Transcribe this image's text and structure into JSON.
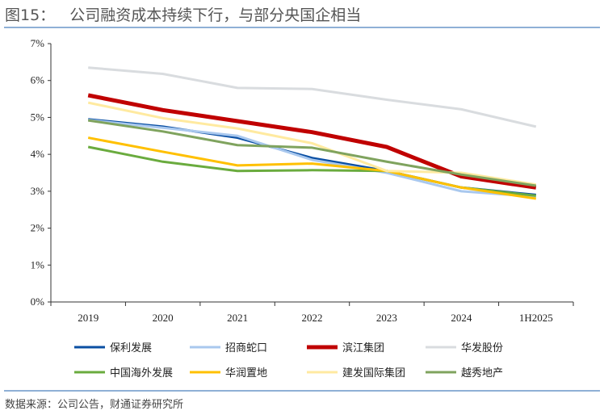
{
  "header": {
    "title": "图15：   公司融资成本持续下行，与部分央国企相当"
  },
  "footer": {
    "source": "数据来源：公司公告，财通证券研究所"
  },
  "chart_data": {
    "type": "line",
    "title": "公司融资成本持续下行，与部分央国企相当",
    "xlabel": "",
    "ylabel": "",
    "ylim": [
      0,
      7
    ],
    "yticks": [
      "0%",
      "1%",
      "2%",
      "3%",
      "4%",
      "5%",
      "6%",
      "7%"
    ],
    "categories": [
      "2019",
      "2020",
      "2021",
      "2022",
      "2023",
      "2024",
      "1H2025"
    ],
    "legend_position": "bottom",
    "series": [
      {
        "name": "保利发展",
        "color": "#0a4fa3",
        "width": 3,
        "values": [
          4.95,
          4.75,
          4.45,
          3.9,
          3.55,
          3.1,
          2.9
        ]
      },
      {
        "name": "招商蛇口",
        "color": "#a9c8ee",
        "width": 3,
        "values": [
          4.93,
          4.72,
          4.5,
          3.85,
          3.5,
          3.0,
          2.85
        ]
      },
      {
        "name": "滨江集团",
        "color": "#c00000",
        "width": 5,
        "values": [
          5.6,
          5.2,
          4.9,
          4.6,
          4.2,
          3.4,
          3.1
        ]
      },
      {
        "name": "华发股份",
        "color": "#d9dcdf",
        "width": 3,
        "values": [
          6.35,
          6.18,
          5.8,
          5.77,
          5.48,
          5.22,
          4.75
        ]
      },
      {
        "name": "中国海外发展",
        "color": "#6aab3e",
        "width": 3,
        "values": [
          4.2,
          3.8,
          3.55,
          3.57,
          3.55,
          3.1,
          2.88
        ]
      },
      {
        "name": "华润置地",
        "color": "#ffc000",
        "width": 3,
        "values": [
          4.45,
          4.07,
          3.7,
          3.75,
          3.55,
          3.1,
          2.8
        ]
      },
      {
        "name": "建发国际集团",
        "color": "#ffeaa0",
        "width": 3,
        "values": [
          5.4,
          4.98,
          4.7,
          4.3,
          3.55,
          3.5,
          3.18
        ]
      },
      {
        "name": "越秀地产",
        "color": "#7fa35e",
        "width": 3,
        "values": [
          4.92,
          4.62,
          4.25,
          4.18,
          3.8,
          3.45,
          3.15
        ]
      }
    ]
  }
}
